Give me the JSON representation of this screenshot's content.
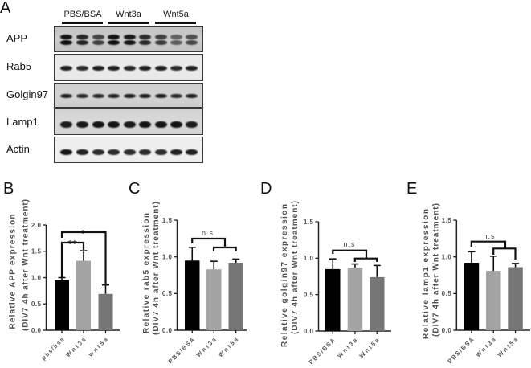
{
  "panel_a": {
    "letter": "A",
    "groups": [
      {
        "label": "PBS/BSA"
      },
      {
        "label": "Wnt3a"
      },
      {
        "label": "Wnt5a"
      }
    ],
    "lanes_per_group": 3,
    "rows": [
      {
        "label": "APP",
        "background": "#c4c4c4",
        "doublet": true,
        "bands": [
          0.95,
          0.85,
          0.7,
          0.95,
          0.92,
          0.82,
          0.72,
          0.55,
          0.65
        ]
      },
      {
        "label": "Rab5",
        "background": "#e8e8e8",
        "doublet": false,
        "bands": [
          0.9,
          0.85,
          0.9,
          0.9,
          0.88,
          0.9,
          0.9,
          0.85,
          0.9
        ]
      },
      {
        "label": "Golgin97",
        "background": "#cdcdcd",
        "doublet": false,
        "bands": [
          0.9,
          0.85,
          0.85,
          0.88,
          0.9,
          0.9,
          0.9,
          0.85,
          0.9
        ]
      },
      {
        "label": "Lamp1",
        "background": "#d3d3d3",
        "doublet": false,
        "bands": [
          0.9,
          0.92,
          0.95,
          0.95,
          0.92,
          0.95,
          0.95,
          0.95,
          0.9
        ]
      },
      {
        "label": "Actin",
        "background": "#ededed",
        "doublet": false,
        "bands": [
          0.95,
          0.9,
          0.85,
          0.85,
          0.85,
          0.85,
          0.85,
          0.9,
          0.9
        ]
      }
    ]
  },
  "chart_data": [
    {
      "panel": "B",
      "type": "bar",
      "categories": [
        "pbs/bsa",
        "Wnt3a",
        "wnt5a"
      ],
      "values": [
        0.95,
        1.32,
        0.69
      ],
      "errors": [
        0.05,
        0.19,
        0.17
      ],
      "ylabel": [
        "Relative APP expression",
        "(DIV7 4h after Wnt treatment)"
      ],
      "xlabel": "",
      "ylim": [
        0,
        2.0
      ],
      "yticks": [
        "0.0",
        "0.5",
        "1.0",
        "1.5",
        "2.0"
      ],
      "colors": [
        "#000000",
        "#a3a3a3",
        "#767676"
      ],
      "annotations": [
        {
          "label": "**",
          "compare": [
            "pbs/bsa",
            "Wnt3a"
          ]
        },
        {
          "label": "*",
          "compare": [
            "pbs/bsa",
            "wnt5a"
          ]
        }
      ],
      "grid": false
    },
    {
      "panel": "C",
      "type": "bar",
      "categories": [
        "PBS/BSA",
        "Wnt3a",
        "Wnt5a"
      ],
      "values": [
        0.95,
        0.83,
        0.92
      ],
      "errors": [
        0.18,
        0.11,
        0.05
      ],
      "ylabel": [
        "Relative rab5 expression",
        "(DIV7 4h after Wnt treatment)"
      ],
      "xlabel": "",
      "ylim": [
        0,
        1.5
      ],
      "yticks": [
        "0.0",
        "0.5",
        "1.0",
        "1.5"
      ],
      "colors": [
        "#000000",
        "#a3a3a3",
        "#767676"
      ],
      "annotations": [
        {
          "label": "n.s",
          "compare": [
            "PBS/BSA",
            "Wnt3a + Wnt5a"
          ]
        }
      ],
      "grid": false
    },
    {
      "panel": "D",
      "type": "bar",
      "categories": [
        "PBS/BSA",
        "Wnt3a",
        "Wnt5a"
      ],
      "values": [
        0.85,
        0.87,
        0.74
      ],
      "errors": [
        0.14,
        0.05,
        0.16
      ],
      "ylabel": [
        "Relative golgin97 expression",
        "(DIV7 4h after Wnt treatment)"
      ],
      "xlabel": "",
      "ylim": [
        0,
        1.5
      ],
      "yticks": [
        "0.0",
        "0.5",
        "1.0",
        "1.5"
      ],
      "colors": [
        "#000000",
        "#a3a3a3",
        "#767676"
      ],
      "annotations": [
        {
          "label": "n.s",
          "compare": [
            "PBS/BSA",
            "Wnt3a + Wnt5a"
          ]
        }
      ],
      "grid": false
    },
    {
      "panel": "E",
      "type": "bar",
      "categories": [
        "PBS/BSA",
        "Wnt3a",
        "Wnt5a"
      ],
      "values": [
        0.92,
        0.81,
        0.86
      ],
      "errors": [
        0.15,
        0.2,
        0.05
      ],
      "ylabel": [
        "Relative lamp1 expression",
        "(DIV7 4h after Wnt treatment)"
      ],
      "xlabel": "",
      "ylim": [
        0,
        1.5
      ],
      "yticks": [
        "0.0",
        "0.5",
        "1.0",
        "1.5"
      ],
      "colors": [
        "#000000",
        "#a3a3a3",
        "#767676"
      ],
      "annotations": [
        {
          "label": "n.s",
          "compare": [
            "PBS/BSA",
            "Wnt3a + Wnt5a"
          ]
        }
      ],
      "grid": false
    }
  ]
}
